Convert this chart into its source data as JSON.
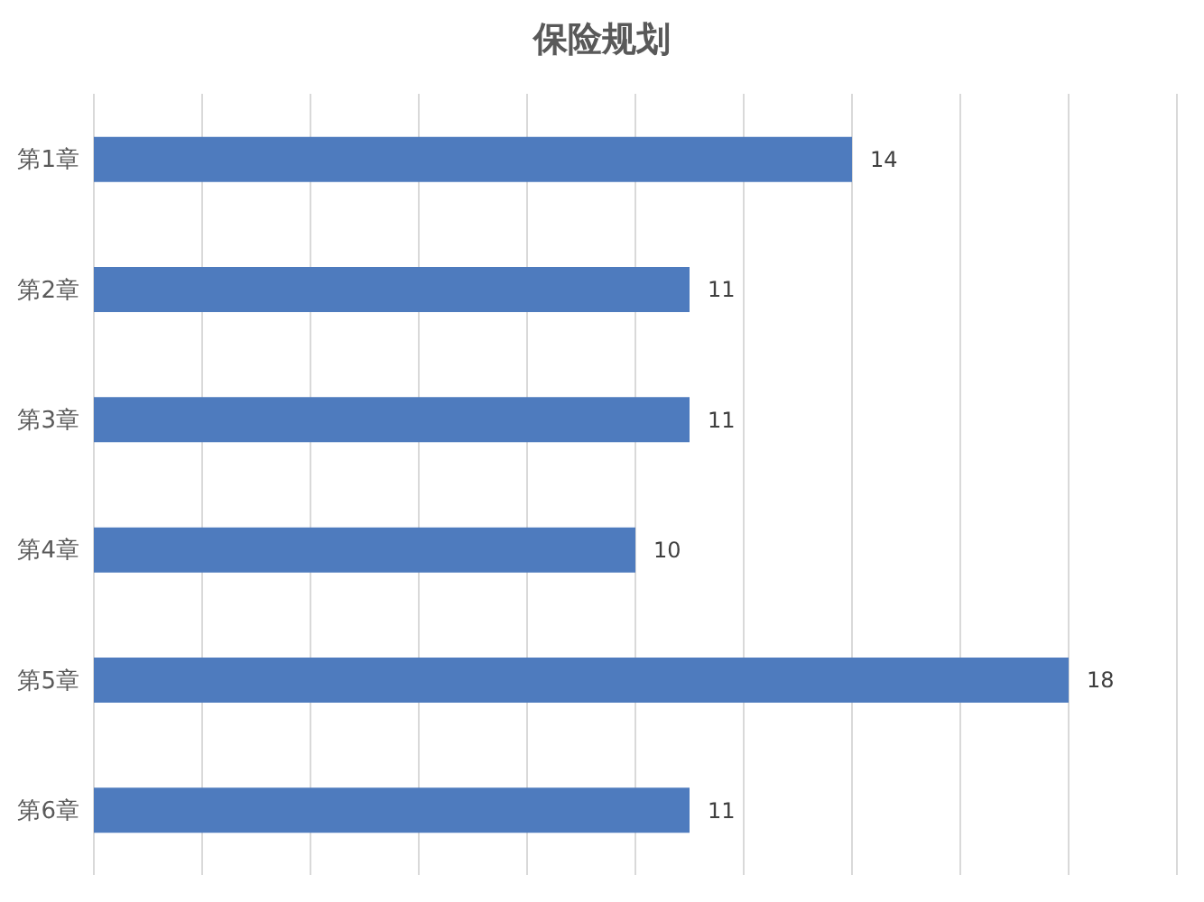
{
  "chart_data": {
    "type": "bar",
    "orientation": "horizontal",
    "title": "保险规划",
    "categories": [
      "第1章",
      "第2章",
      "第3章",
      "第4章",
      "第5章",
      "第6章"
    ],
    "values": [
      14,
      11,
      11,
      10,
      18,
      11
    ],
    "color": "#4e7bbe",
    "xlim": [
      0,
      20
    ],
    "xticks": [
      {
        "value": 0,
        "label": null
      },
      {
        "value": 2,
        "label": null
      },
      {
        "value": 4,
        "label": null
      },
      {
        "value": 6,
        "label": null
      },
      {
        "value": 8,
        "label": null
      },
      {
        "value": 10,
        "label": null
      },
      {
        "value": 12,
        "label": null
      },
      {
        "value": 14,
        "label": null
      },
      {
        "value": 16,
        "label": null
      },
      {
        "value": 18,
        "label": null
      },
      {
        "value": 20,
        "label": null
      }
    ],
    "grid": "x",
    "tick_labels": "y",
    "data_labels": true
  }
}
